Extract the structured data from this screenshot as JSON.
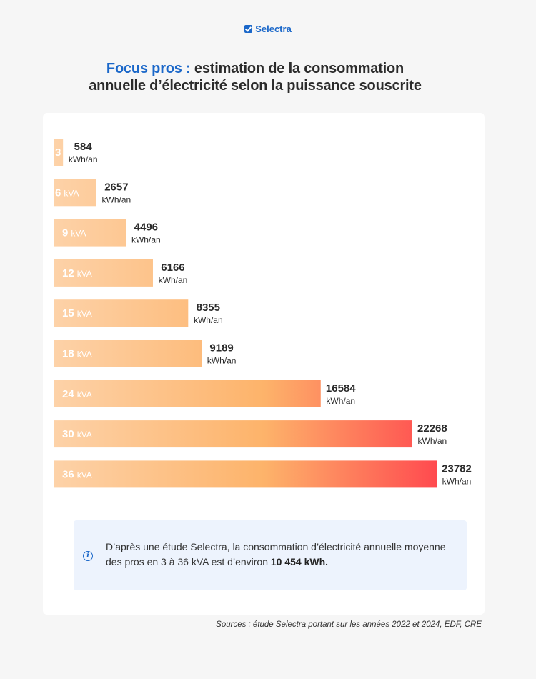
{
  "brand": {
    "name": "Selectra"
  },
  "header": {
    "title_accent": "Focus pros :",
    "title_line1_rest": " estimation de la consommation",
    "title_line2": "annuelle d’électricité selon la puissance souscrite"
  },
  "chart_data": {
    "type": "bar",
    "orientation": "horizontal",
    "categories": [
      "3",
      "6",
      "9",
      "12",
      "15",
      "18",
      "24",
      "30",
      "36"
    ],
    "category_unit": "kVA",
    "values": [
      584,
      2657,
      4496,
      6166,
      8355,
      9189,
      16584,
      22268,
      23782
    ],
    "value_unit": "kWh/an",
    "xlim": [
      0,
      23782
    ],
    "grid": false,
    "legend": "none",
    "colors": {
      "bar_start": "#fdd2a8",
      "bar_mid": "#fdb36a",
      "bar_end": "#ff4a4f",
      "label": "#ffffff",
      "value": "#2b2b2b"
    }
  },
  "info": {
    "text": "D’après une étude Selectra, la consommation d’électricité annuelle moyenne des pros en 3 à 36 kVA est d’environ ",
    "highlight": "10 454 kWh."
  },
  "footer": {
    "sources": "Sources : étude Selectra portant sur les années 2022 et 2024, EDF, CRE"
  }
}
